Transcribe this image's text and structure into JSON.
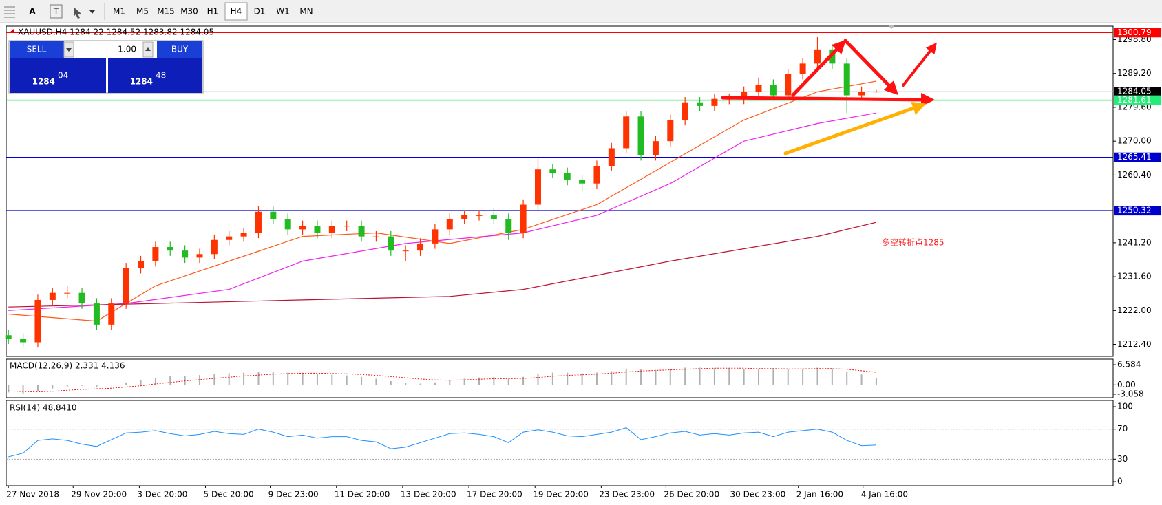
{
  "toolbar": {
    "tools": [
      "A",
      "T"
    ],
    "timeframes": [
      "M1",
      "M5",
      "M15",
      "M30",
      "H1",
      "H4",
      "D1",
      "W1",
      "MN"
    ],
    "selected": 5
  },
  "trade_panel": {
    "sell": "SELL",
    "buy": "BUY",
    "lot": "1.00",
    "sell_big": "1284",
    "sell_small": "04",
    "buy_big": "1284",
    "buy_small": "48"
  },
  "chart_data": {
    "type": "candlestick",
    "title": "XAUUSD,H4  1284.22 1284.52 1283.82 1284.05",
    "annotation": "多空转折点1285",
    "up_color": "#ff3300",
    "down_color": "#22bb22",
    "open": [
      1215,
      1214,
      1213,
      1225,
      1227,
      1227,
      1224,
      1218,
      1224,
      1234,
      1236,
      1240,
      1239,
      1237,
      1238,
      1242,
      1243,
      1244,
      1250,
      1248,
      1245,
      1246,
      1244,
      1246,
      1246,
      1243,
      1243,
      1239,
      1239,
      1241,
      1245,
      1248,
      1249,
      1249,
      1248,
      1244,
      1252,
      1262,
      1261,
      1259,
      1258,
      1263,
      1268,
      1277,
      1266,
      1270,
      1276,
      1281,
      1280,
      1282,
      1282,
      1284,
      1286,
      1283,
      1289,
      1292,
      1296,
      1292,
      1283,
      1284
    ],
    "high": [
      1216.5,
      1215.5,
      1226.5,
      1228.5,
      1229,
      1228.5,
      1225.5,
      1225.5,
      1235.5,
      1237.5,
      1241.5,
      1241.5,
      1240.5,
      1239.5,
      1243.5,
      1244.5,
      1245.5,
      1251.5,
      1251.5,
      1249.5,
      1247.5,
      1247.5,
      1247.5,
      1247.5,
      1247.5,
      1244.5,
      1244.5,
      1240.5,
      1242.5,
      1246.5,
      1249.5,
      1250.5,
      1250.5,
      1251,
      1249.5,
      1253.5,
      1265,
      1263.5,
      1262.5,
      1260.5,
      1264.5,
      1269.5,
      1278.5,
      1278.5,
      1271.5,
      1277.5,
      1282.5,
      1282.5,
      1283.5,
      1283.5,
      1285.5,
      1288,
      1287.5,
      1290.5,
      1293.5,
      1299.5,
      1297.5,
      1293.5,
      1285.5,
      1284.52
    ],
    "low": [
      1212.5,
      1211.5,
      1211.5,
      1223.5,
      1225.5,
      1222.5,
      1216.5,
      1216.5,
      1222.5,
      1232.5,
      1234.5,
      1237.5,
      1235.5,
      1235.5,
      1236.5,
      1240.5,
      1241.5,
      1242.5,
      1246.5,
      1243.5,
      1243.5,
      1242.5,
      1242.5,
      1244.5,
      1241.5,
      1241.5,
      1237.5,
      1236,
      1237.5,
      1239.5,
      1243.5,
      1246.5,
      1247.5,
      1246.5,
      1242,
      1242.5,
      1250.5,
      1259.5,
      1257.5,
      1256,
      1256.5,
      1261.5,
      1266.5,
      1264.5,
      1264.5,
      1268.5,
      1274.5,
      1278.5,
      1278.5,
      1280.5,
      1280.5,
      1282.5,
      1281.5,
      1281.5,
      1287.5,
      1290.5,
      1290.5,
      1278,
      1281.5,
      1283.82
    ],
    "close": [
      1214,
      1213,
      1225,
      1227,
      1227,
      1224,
      1218,
      1224,
      1234,
      1236,
      1240,
      1239,
      1237,
      1238,
      1242,
      1243,
      1244,
      1250,
      1248,
      1245,
      1246,
      1244,
      1246,
      1246,
      1243,
      1243,
      1239,
      1239,
      1241,
      1245,
      1248,
      1249,
      1249,
      1248,
      1244,
      1252,
      1262,
      1261,
      1259,
      1258,
      1263,
      1268,
      1277,
      1266,
      1270,
      1276,
      1281,
      1280,
      1282,
      1282,
      1284,
      1286,
      1283,
      1289,
      1292,
      1296,
      1292,
      1283,
      1284,
      1284.05
    ],
    "xlim": [
      -0.15,
      75.1
    ],
    "ylim": [
      1209,
      1302.6
    ],
    "yticks": [
      {
        "value": 1212.4,
        "label": "1212.40"
      },
      {
        "value": 1222,
        "label": "1222.00"
      },
      {
        "value": 1231.6,
        "label": "1231.60"
      },
      {
        "value": 1241.2,
        "label": "1241.20"
      },
      {
        "value": 1260.4,
        "label": "1260.40"
      },
      {
        "value": 1270,
        "label": "1270.00"
      },
      {
        "value": 1279.6,
        "label": "1279.60"
      },
      {
        "value": 1289.2,
        "label": "1289.20"
      },
      {
        "value": 1298.8,
        "label": "1298.80"
      }
    ],
    "xticks": [
      {
        "value": 0,
        "label": "27 Nov 2018"
      },
      {
        "value": 4.4,
        "label": "29 Nov 20:00"
      },
      {
        "value": 8.9,
        "label": "3 Dec 20:00"
      },
      {
        "value": 13.4,
        "label": "5 Dec 20:00"
      },
      {
        "value": 17.8,
        "label": "9 Dec 23:00"
      },
      {
        "value": 22.3,
        "label": "11 Dec 20:00"
      },
      {
        "value": 26.8,
        "label": "13 Dec 20:00"
      },
      {
        "value": 31.3,
        "label": "17 Dec 20:00"
      },
      {
        "value": 35.8,
        "label": "19 Dec 20:00"
      },
      {
        "value": 40.3,
        "label": "23 Dec 23:00"
      },
      {
        "value": 44.7,
        "label": "26 Dec 20:00"
      },
      {
        "value": 49.2,
        "label": "30 Dec 23:00"
      },
      {
        "value": 53.7,
        "label": "2 Jan 16:00"
      },
      {
        "value": 58.1,
        "label": "4 Jan 16:00"
      }
    ],
    "moving_averages": [
      {
        "color": "#ff5a1a",
        "x": [
          0,
          6,
          10,
          15,
          20,
          25,
          30,
          35,
          40,
          45,
          50,
          55,
          59
        ],
        "values": [
          1221,
          1219,
          1229,
          1236,
          1243,
          1244,
          1241,
          1245,
          1252,
          1264,
          1276,
          1284,
          1287
        ]
      },
      {
        "color": "#ee22ee",
        "x": [
          0,
          8,
          15,
          20,
          27,
          35,
          40,
          45,
          50,
          55,
          59
        ],
        "values": [
          1222,
          1224,
          1228,
          1236,
          1241,
          1244,
          1249,
          1258,
          1270,
          1275,
          1278
        ]
      },
      {
        "color": "#bb1133",
        "x": [
          0,
          10,
          20,
          30,
          35,
          40,
          45,
          55,
          59
        ],
        "values": [
          1223,
          1224,
          1225,
          1226,
          1228,
          1232,
          1236,
          1243,
          1247
        ]
      }
    ],
    "levels": [
      {
        "value": 1300.79,
        "color": "#ff0000",
        "label_bg": "#ff0000",
        "label_color": "#ffffff"
      },
      {
        "value": 1284.05,
        "color": "#c8c8c8",
        "label_bg": "#000000",
        "label_color": "#ffffff"
      },
      {
        "value": 1281.61,
        "color": "#22dd55",
        "label_bg": "#22ee77",
        "label_color": "#ffffff"
      },
      {
        "value": 1265.41,
        "color": "#0000cc",
        "label_bg": "#0000cc",
        "label_color": "#ffffff"
      },
      {
        "value": 1250.32,
        "color": "#0000cc",
        "label_bg": "#0000cc",
        "label_color": "#ffffff"
      }
    ],
    "macd": {
      "label": "MACD(12,26,9) 2.331 4.136",
      "ylim": [
        -4.2,
        8.4
      ],
      "yticks": [
        6.584,
        {
          "value": 0,
          "label": "0.00"
        },
        -3.058
      ],
      "histogram": [
        -2.5,
        -2.8,
        -2.2,
        -1.2,
        -0.5,
        -0.3,
        -0.6,
        -0.2,
        0.8,
        1.5,
        2.3,
        2.8,
        3.0,
        3.2,
        3.6,
        3.8,
        4.0,
        4.3,
        4.2,
        4.0,
        3.8,
        3.5,
        3.3,
        3.1,
        2.6,
        2.0,
        1.2,
        0.6,
        0.4,
        0.8,
        1.5,
        2.0,
        2.4,
        2.5,
        2.0,
        2.6,
        3.6,
        4.0,
        4.0,
        3.8,
        4.0,
        4.5,
        5.3,
        5.0,
        4.9,
        5.2,
        5.6,
        5.6,
        5.5,
        5.3,
        5.2,
        5.2,
        5.0,
        5.1,
        5.3,
        5.6,
        5.4,
        4.4,
        3.4,
        2.331
      ],
      "signal": [
        -2.0,
        -2.2,
        -2.3,
        -2.1,
        -1.8,
        -1.5,
        -1.3,
        -1.1,
        -0.7,
        -0.3,
        0.3,
        0.8,
        1.3,
        1.7,
        2.1,
        2.5,
        2.9,
        3.2,
        3.5,
        3.7,
        3.8,
        3.8,
        3.7,
        3.6,
        3.4,
        3.1,
        2.7,
        2.3,
        1.9,
        1.6,
        1.5,
        1.6,
        1.8,
        2.0,
        2.0,
        2.1,
        2.4,
        2.8,
        3.1,
        3.3,
        3.5,
        3.8,
        4.2,
        4.5,
        4.7,
        4.9,
        5.1,
        5.3,
        5.4,
        5.4,
        5.4,
        5.3,
        5.3,
        5.2,
        5.2,
        5.3,
        5.3,
        5.1,
        4.6,
        4.136
      ]
    },
    "rsi": {
      "label": "RSI(14) 48.8410",
      "ylim": [
        -5.5,
        108.3
      ],
      "yticks": [
        100,
        70,
        30,
        0
      ],
      "levels": [
        70,
        30
      ],
      "color": "#1e90ff",
      "values": [
        33,
        38,
        55,
        57,
        55,
        50,
        47,
        56,
        65,
        66,
        68,
        64,
        61,
        63,
        67,
        64,
        63,
        70,
        66,
        60,
        62,
        58,
        60,
        60,
        55,
        53,
        44,
        46,
        52,
        58,
        64,
        65,
        63,
        60,
        52,
        66,
        69,
        66,
        61,
        60,
        63,
        66,
        72,
        56,
        60,
        65,
        67,
        62,
        64,
        62,
        65,
        66,
        60,
        66,
        68,
        70,
        66,
        55,
        48,
        48.841
      ]
    }
  }
}
